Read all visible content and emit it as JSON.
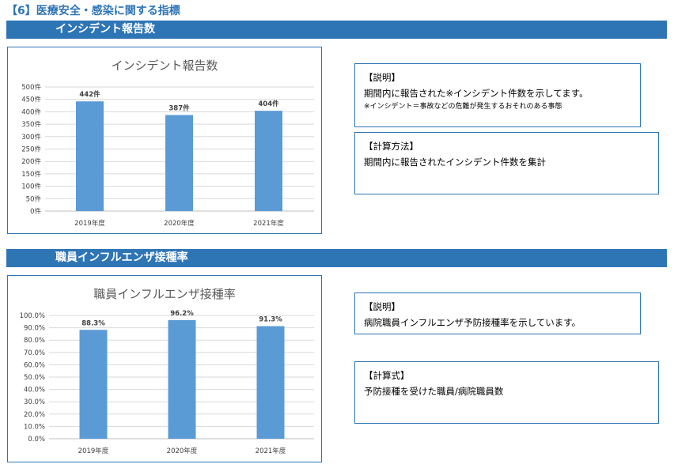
{
  "page": {
    "heading": "【6】医療安全・感染に関する指標"
  },
  "incident": {
    "section_title": "インシデント報告数",
    "explanation": {
      "heading": "【説明】",
      "text": "期間内に報告された※インシデント件数を示してます。",
      "note": "※インシデント＝事故などの危難が発生するおそれのある事態"
    },
    "method": {
      "heading": "【計算方法】",
      "text": "期間内に報告されたインシデント件数を集計"
    }
  },
  "influenza": {
    "section_title": "職員インフルエンザ接種率",
    "explanation": {
      "heading": "【説明】",
      "text": "病院職員インフルエンザ予防接種率を示しています。"
    },
    "formula": {
      "heading": "【計算式】",
      "text": "予防接種を受けた職員/病院職員数"
    }
  },
  "colors": {
    "accent": "#2e75b6",
    "bar": "#5b9bd5",
    "grid": "#d9d9d9"
  },
  "chart_data": [
    {
      "type": "bar",
      "title": "インシデント報告数",
      "categories": [
        "2019年度",
        "2020年度",
        "2021年度"
      ],
      "values": [
        442,
        387,
        404
      ],
      "data_labels": [
        "442件",
        "387件",
        "404件"
      ],
      "ylim": [
        0,
        500
      ],
      "y_ticks": [
        "0件",
        "50件",
        "100件",
        "150件",
        "200件",
        "250件",
        "300件",
        "350件",
        "400件",
        "450件",
        "500件"
      ],
      "grid": true,
      "legend": "none"
    },
    {
      "type": "bar",
      "title": "職員インフルエンザ接種率",
      "categories": [
        "2019年度",
        "2020年度",
        "2021年度"
      ],
      "values": [
        88.3,
        96.2,
        91.3
      ],
      "data_labels": [
        "88.3%",
        "96.2%",
        "91.3%"
      ],
      "ylim": [
        0,
        100
      ],
      "y_ticks": [
        "0.0%",
        "10.0%",
        "20.0%",
        "30.0%",
        "40.0%",
        "50.0%",
        "60.0%",
        "70.0%",
        "80.0%",
        "90.0%",
        "100.0%"
      ],
      "grid": true,
      "legend": "none"
    }
  ]
}
